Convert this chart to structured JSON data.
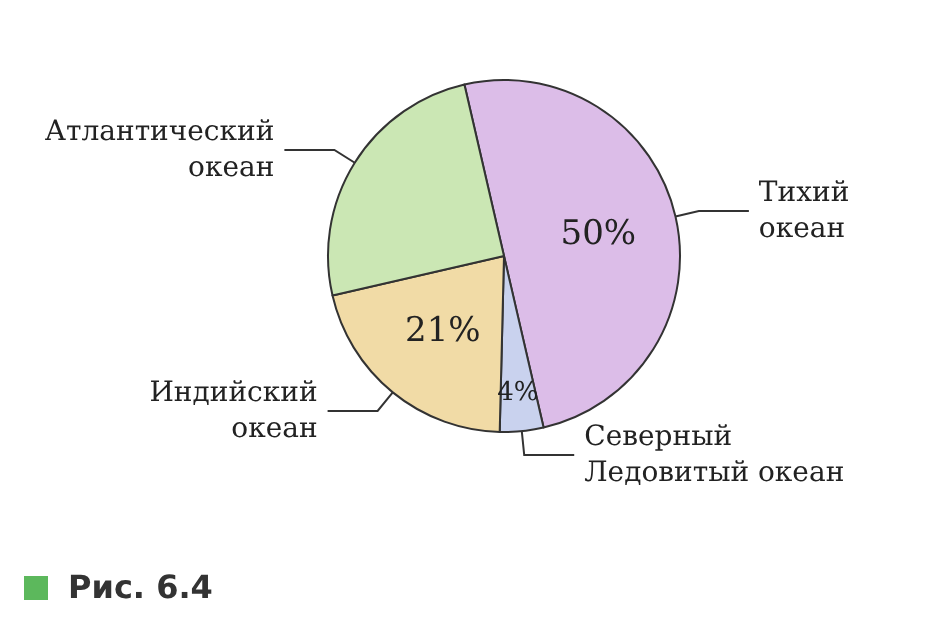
{
  "chart_data": {
    "type": "pie",
    "categories": [
      "Тихий океан",
      "Северный Ледовитый океан",
      "Индийский океан",
      "Атлантический океан"
    ],
    "values": [
      50,
      4,
      21,
      25
    ],
    "value_labels": [
      "50%",
      "4%",
      "21%",
      null
    ],
    "colors": [
      "#dcbde8",
      "#c9d2ee",
      "#f1dba6",
      "#cbe7b4"
    ],
    "annotations": [
      "Рис. 6.4"
    ]
  }
}
